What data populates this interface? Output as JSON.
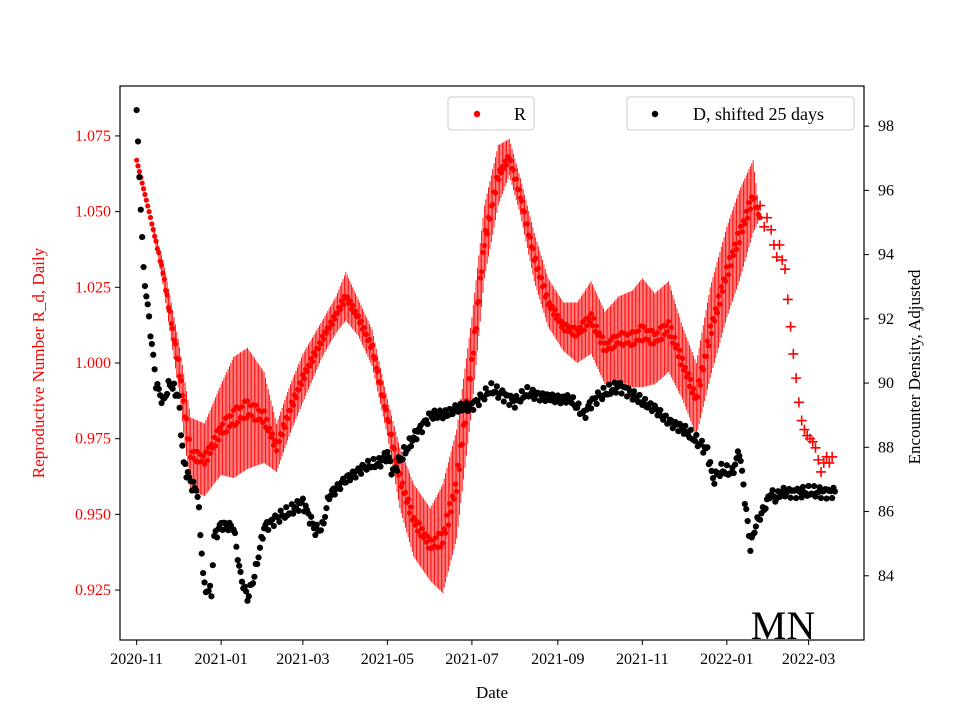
{
  "chart_data": {
    "type": "line",
    "annotation": "MN",
    "xlabel": "Date",
    "ylabel_left": "Reproductive Number R_d, Daily",
    "ylabel_right": "Encounter Density, Adjusted",
    "x_range": [
      "2020-10-20",
      "2022-04-10"
    ],
    "x_ticks": [
      {
        "date": "2020-11-01",
        "label": "2020-11"
      },
      {
        "date": "2021-01-01",
        "label": "2021-01"
      },
      {
        "date": "2021-03-01",
        "label": "2021-03"
      },
      {
        "date": "2021-05-01",
        "label": "2021-05"
      },
      {
        "date": "2021-07-01",
        "label": "2021-07"
      },
      {
        "date": "2021-09-01",
        "label": "2021-09"
      },
      {
        "date": "2021-11-01",
        "label": "2021-11"
      },
      {
        "date": "2022-01-01",
        "label": "2022-01"
      },
      {
        "date": "2022-03-01",
        "label": "2022-03"
      }
    ],
    "ylim_left": [
      0.9085,
      1.0915
    ],
    "ylim_right": [
      82.0,
      99.25
    ],
    "y_ticks_left": [
      "0.925",
      "0.950",
      "0.975",
      "1.000",
      "1.025",
      "1.050",
      "1.075"
    ],
    "y_ticks_right": [
      "84",
      "86",
      "88",
      "90",
      "92",
      "94",
      "96",
      "98"
    ],
    "colors": {
      "r_series": "#ff0000",
      "d_series": "#000000"
    },
    "series": [
      {
        "name": "R",
        "axis": "left",
        "style": "dots with daily oscillation band; plus markers after 2022-01-25",
        "anchors": [
          [
            "2020-11-01",
            1.067,
            0.0
          ],
          [
            "2020-11-10",
            1.05,
            0.0
          ],
          [
            "2020-11-20",
            1.03,
            0.004
          ],
          [
            "2020-12-01",
            1.0,
            0.008
          ],
          [
            "2020-12-10",
            0.97,
            0.012
          ],
          [
            "2020-12-20",
            0.968,
            0.012
          ],
          [
            "2021-01-01",
            0.978,
            0.015
          ],
          [
            "2021-01-10",
            0.982,
            0.02
          ],
          [
            "2021-01-20",
            0.985,
            0.02
          ],
          [
            "2021-02-01",
            0.982,
            0.015
          ],
          [
            "2021-02-10",
            0.972,
            0.008
          ],
          [
            "2021-02-20",
            0.985,
            0.008
          ],
          [
            "2021-03-01",
            0.995,
            0.008
          ],
          [
            "2021-03-15",
            1.008,
            0.006
          ],
          [
            "2021-03-25",
            1.016,
            0.006
          ],
          [
            "2021-04-01",
            1.022,
            0.008
          ],
          [
            "2021-04-10",
            1.015,
            0.006
          ],
          [
            "2021-04-20",
            1.005,
            0.006
          ],
          [
            "2021-05-01",
            0.982,
            0.006
          ],
          [
            "2021-05-10",
            0.962,
            0.01
          ],
          [
            "2021-05-20",
            0.948,
            0.012
          ],
          [
            "2021-06-01",
            0.94,
            0.012
          ],
          [
            "2021-06-10",
            0.942,
            0.018
          ],
          [
            "2021-06-20",
            0.96,
            0.018
          ],
          [
            "2021-07-01",
            1.0,
            0.015
          ],
          [
            "2021-07-10",
            1.04,
            0.012
          ],
          [
            "2021-07-20",
            1.062,
            0.01
          ],
          [
            "2021-07-28",
            1.068,
            0.006
          ],
          [
            "2021-08-05",
            1.055,
            0.006
          ],
          [
            "2021-08-15",
            1.035,
            0.008
          ],
          [
            "2021-08-25",
            1.02,
            0.008
          ],
          [
            "2021-09-05",
            1.012,
            0.008
          ],
          [
            "2021-09-15",
            1.01,
            0.01
          ],
          [
            "2021-09-25",
            1.015,
            0.012
          ],
          [
            "2021-10-05",
            1.005,
            0.012
          ],
          [
            "2021-10-15",
            1.008,
            0.014
          ],
          [
            "2021-10-25",
            1.008,
            0.016
          ],
          [
            "2021-11-01",
            1.01,
            0.018
          ],
          [
            "2021-11-10",
            1.008,
            0.015
          ],
          [
            "2021-11-20",
            1.012,
            0.015
          ],
          [
            "2021-11-30",
            1.0,
            0.012
          ],
          [
            "2021-12-10",
            0.988,
            0.012
          ],
          [
            "2021-12-20",
            1.01,
            0.015
          ],
          [
            "2022-01-01",
            1.03,
            0.015
          ],
          [
            "2022-01-10",
            1.042,
            0.015
          ],
          [
            "2022-01-20",
            1.055,
            0.012
          ],
          [
            "2022-01-25",
            1.048,
            0.0
          ]
        ],
        "plus_markers": [
          [
            "2022-01-25",
            1.052
          ],
          [
            "2022-01-28",
            1.045
          ],
          [
            "2022-01-30",
            1.048
          ],
          [
            "2022-02-02",
            1.044
          ],
          [
            "2022-02-04",
            1.039
          ],
          [
            "2022-02-06",
            1.035
          ],
          [
            "2022-02-08",
            1.039
          ],
          [
            "2022-02-10",
            1.034
          ],
          [
            "2022-02-12",
            1.031
          ],
          [
            "2022-02-14",
            1.021
          ],
          [
            "2022-02-16",
            1.012
          ],
          [
            "2022-02-18",
            1.003
          ],
          [
            "2022-02-20",
            0.995
          ],
          [
            "2022-02-22",
            0.987
          ],
          [
            "2022-02-24",
            0.981
          ],
          [
            "2022-02-26",
            0.978
          ],
          [
            "2022-02-28",
            0.976
          ],
          [
            "2022-03-02",
            0.975
          ],
          [
            "2022-03-04",
            0.974
          ],
          [
            "2022-03-06",
            0.972
          ],
          [
            "2022-03-08",
            0.968
          ],
          [
            "2022-03-10",
            0.964
          ],
          [
            "2022-03-12",
            0.967
          ],
          [
            "2022-03-14",
            0.969
          ],
          [
            "2022-03-16",
            0.967
          ],
          [
            "2022-03-18",
            0.969
          ]
        ]
      },
      {
        "name": "D, shifted 25 days",
        "axis": "right",
        "style": "dots",
        "anchors": [
          [
            "2020-11-01",
            98.5
          ],
          [
            "2020-11-02",
            97.4
          ],
          [
            "2020-11-04",
            95.5
          ],
          [
            "2020-11-06",
            93.5
          ],
          [
            "2020-11-10",
            92.0
          ],
          [
            "2020-11-15",
            90.0
          ],
          [
            "2020-11-20",
            89.4
          ],
          [
            "2020-11-25",
            90.0
          ],
          [
            "2020-12-01",
            89.6
          ],
          [
            "2020-12-05",
            87.5
          ],
          [
            "2020-12-10",
            86.9
          ],
          [
            "2020-12-15",
            86.6
          ],
          [
            "2020-12-17",
            85.3
          ],
          [
            "2020-12-20",
            83.6
          ],
          [
            "2020-12-25",
            83.5
          ],
          [
            "2020-12-27",
            85.2
          ],
          [
            "2021-01-01",
            85.6
          ],
          [
            "2021-01-10",
            85.5
          ],
          [
            "2021-01-15",
            84.0
          ],
          [
            "2021-01-20",
            83.3
          ],
          [
            "2021-01-25",
            84.0
          ],
          [
            "2021-02-01",
            85.5
          ],
          [
            "2021-02-10",
            85.8
          ],
          [
            "2021-02-20",
            86.0
          ],
          [
            "2021-03-01",
            86.3
          ],
          [
            "2021-03-10",
            85.4
          ],
          [
            "2021-03-15",
            85.5
          ],
          [
            "2021-03-20",
            86.5
          ],
          [
            "2021-04-01",
            87.0
          ],
          [
            "2021-04-15",
            87.4
          ],
          [
            "2021-04-25",
            87.5
          ],
          [
            "2021-05-01",
            87.8
          ],
          [
            "2021-05-05",
            87.2
          ],
          [
            "2021-05-10",
            87.6
          ],
          [
            "2021-05-20",
            88.3
          ],
          [
            "2021-06-01",
            89.0
          ],
          [
            "2021-06-10",
            89.0
          ],
          [
            "2021-06-20",
            89.2
          ],
          [
            "2021-07-01",
            89.3
          ],
          [
            "2021-07-15",
            89.8
          ],
          [
            "2021-07-25",
            89.6
          ],
          [
            "2021-08-01",
            89.4
          ],
          [
            "2021-08-10",
            89.7
          ],
          [
            "2021-08-20",
            89.6
          ],
          [
            "2021-09-01",
            89.5
          ],
          [
            "2021-09-10",
            89.5
          ],
          [
            "2021-09-20",
            89.0
          ],
          [
            "2021-09-25",
            89.4
          ],
          [
            "2021-10-01",
            89.6
          ],
          [
            "2021-10-15",
            89.9
          ],
          [
            "2021-10-20",
            89.8
          ],
          [
            "2021-11-01",
            89.4
          ],
          [
            "2021-11-10",
            89.2
          ],
          [
            "2021-11-20",
            88.8
          ],
          [
            "2021-11-30",
            88.6
          ],
          [
            "2021-12-10",
            88.2
          ],
          [
            "2021-12-18",
            87.9
          ],
          [
            "2021-12-22",
            87.0
          ],
          [
            "2021-12-28",
            87.3
          ],
          [
            "2022-01-05",
            87.2
          ],
          [
            "2022-01-10",
            87.9
          ],
          [
            "2022-01-12",
            87.2
          ],
          [
            "2022-01-15",
            86.0
          ],
          [
            "2022-01-18",
            84.9
          ],
          [
            "2022-01-22",
            85.6
          ],
          [
            "2022-01-28",
            86.1
          ],
          [
            "2022-02-02",
            86.6
          ],
          [
            "2022-02-05",
            86.4
          ],
          [
            "2022-02-10",
            86.6
          ],
          [
            "2022-03-20",
            86.6
          ]
        ]
      }
    ],
    "legends": [
      {
        "label": "R",
        "color": "#ff0000",
        "placement": "top-center"
      },
      {
        "label": "D, shifted 25 days",
        "color": "#000000",
        "placement": "top-right"
      }
    ]
  }
}
